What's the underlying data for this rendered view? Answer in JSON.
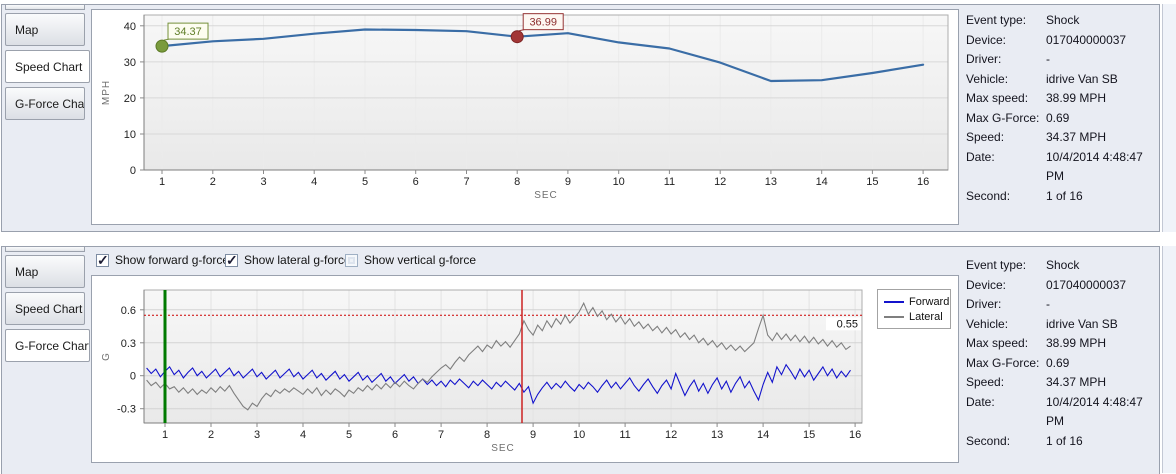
{
  "tabs": [
    "Map",
    "Speed Chart",
    "G-Force Chart"
  ],
  "top_panel": {
    "selected_tab": "Speed Chart"
  },
  "bottom_panel": {
    "selected_tab": "G-Force Chart"
  },
  "info": {
    "rows": [
      {
        "label": "Event type:",
        "value": "Shock"
      },
      {
        "label": "Device:",
        "value": "017040000037"
      },
      {
        "label": "Driver:",
        "value": "-"
      },
      {
        "label": "Vehicle:",
        "value": "idrive Van SB"
      },
      {
        "label": "Max speed:",
        "value": "38.99 MPH"
      },
      {
        "label": "Max G-Force:",
        "value": "0.69"
      },
      {
        "label": "Speed:",
        "value": "34.37 MPH"
      },
      {
        "label": "Date:",
        "value": "10/4/2014 4:48:47 PM"
      },
      {
        "label": "Second:",
        "value": "1 of 16"
      }
    ]
  },
  "gforce_controls": {
    "checkboxes": [
      {
        "label": "Show forward g-force",
        "checked": true
      },
      {
        "label": "Show lateral g-force",
        "checked": true
      },
      {
        "label": "Show vertical g-force",
        "checked": false
      }
    ]
  },
  "chart_data": [
    {
      "type": "line",
      "title": "Speed Chart",
      "xlabel": "SEC",
      "ylabel": "MPH",
      "x": [
        1,
        2,
        3,
        4,
        5,
        6,
        7,
        8,
        9,
        10,
        11,
        12,
        13,
        14,
        15,
        16
      ],
      "values": [
        34.37,
        35.7,
        36.4,
        37.8,
        38.99,
        38.85,
        38.5,
        36.99,
        37.95,
        35.4,
        33.7,
        29.8,
        24.7,
        24.9,
        26.9,
        29.2
      ],
      "ylim": [
        0,
        43
      ],
      "yticks": [
        0,
        10,
        20,
        30,
        40
      ],
      "xticks": [
        1,
        2,
        3,
        4,
        5,
        6,
        7,
        8,
        9,
        10,
        11,
        12,
        13,
        14,
        15,
        16
      ],
      "grid": true,
      "line_color": "#3a6da6",
      "annotations": [
        {
          "x": 1,
          "y": 34.37,
          "label": "34.37",
          "dot_color": "#7a9b3d",
          "dot_edge": "#5c7a26",
          "text_color": "#5e7d26",
          "box_border": "#74903a",
          "box_fill": "#fdfdf0"
        },
        {
          "x": 8,
          "y": 36.99,
          "label": "36.99",
          "dot_color": "#a23636",
          "dot_edge": "#7d2424",
          "text_color": "#8d2f2f",
          "box_border": "#963434",
          "box_fill": "#fdf7f2"
        }
      ]
    },
    {
      "type": "line",
      "title": "G-Force Chart",
      "xlabel": "SEC",
      "ylabel": "G",
      "ylim": [
        -0.43,
        0.78
      ],
      "yticks": [
        -0.3,
        0,
        0.3,
        0.6
      ],
      "xticks": [
        1,
        2,
        3,
        4,
        5,
        6,
        7,
        8,
        9,
        10,
        11,
        12,
        13,
        14,
        15,
        16
      ],
      "grid": true,
      "legend_position": "top-right",
      "threshold": {
        "y": 0.55,
        "label": "0.55",
        "color": "#cc0000"
      },
      "vmarkers": [
        {
          "name": "selected-second-marker",
          "x": 1,
          "color": "#007a00",
          "width": 3
        },
        {
          "name": "event-cursor",
          "x": 8.76,
          "color": "#cc2222",
          "width": 1.5
        }
      ],
      "legend": [
        {
          "name": "Forward",
          "color": "#1313cc"
        },
        {
          "name": "Lateral",
          "color": "#7f7f7f"
        }
      ],
      "x_start": 0.6,
      "x_step": 0.1,
      "series": [
        {
          "name": "Forward",
          "color": "#1313cc",
          "values": [
            0.07,
            0.02,
            0.06,
            -0.01,
            0.04,
            0.08,
            0.01,
            0.05,
            -0.02,
            0.03,
            0.07,
            0.0,
            0.04,
            -0.02,
            0.02,
            0.06,
            -0.01,
            0.03,
            0.07,
            0.0,
            0.04,
            -0.02,
            0.02,
            0.06,
            -0.01,
            0.03,
            -0.03,
            0.01,
            0.05,
            -0.02,
            0.02,
            0.06,
            -0.01,
            0.03,
            -0.03,
            0.01,
            0.05,
            -0.02,
            0.02,
            -0.04,
            0.0,
            0.04,
            -0.03,
            0.01,
            -0.05,
            -0.01,
            0.03,
            -0.04,
            0.0,
            -0.06,
            -0.02,
            0.02,
            -0.05,
            -0.01,
            -0.07,
            -0.03,
            0.01,
            -0.05,
            -0.01,
            -0.07,
            -0.03,
            -0.08,
            -0.04,
            -0.09,
            -0.05,
            -0.1,
            -0.04,
            -0.08,
            -0.03,
            -0.07,
            -0.11,
            -0.05,
            -0.09,
            -0.04,
            -0.08,
            -0.12,
            -0.06,
            -0.1,
            -0.05,
            -0.09,
            -0.13,
            -0.07,
            -0.15,
            -0.1,
            -0.25,
            -0.17,
            -0.11,
            -0.06,
            -0.12,
            -0.07,
            -0.11,
            -0.05,
            -0.1,
            -0.14,
            -0.08,
            -0.12,
            -0.06,
            -0.1,
            -0.15,
            -0.09,
            -0.04,
            -0.11,
            -0.06,
            -0.12,
            -0.07,
            -0.02,
            -0.09,
            -0.14,
            -0.08,
            -0.03,
            -0.1,
            -0.16,
            -0.09,
            -0.04,
            -0.12,
            0.02,
            -0.08,
            -0.18,
            -0.1,
            -0.04,
            -0.14,
            -0.07,
            -0.16,
            -0.08,
            -0.02,
            -0.12,
            -0.05,
            -0.15,
            -0.07,
            -0.01,
            -0.11,
            -0.05,
            -0.14,
            -0.22,
            -0.08,
            0.03,
            -0.06,
            0.08,
            0.01,
            0.1,
            0.04,
            -0.03,
            0.06,
            -0.01,
            0.05,
            -0.04,
            0.02,
            0.08,
            0.0,
            0.06,
            -0.02,
            0.04,
            -0.01,
            0.05
          ]
        },
        {
          "name": "Lateral",
          "color": "#7f7f7f",
          "values": [
            -0.04,
            -0.09,
            -0.06,
            -0.11,
            -0.07,
            -0.12,
            -0.1,
            -0.15,
            -0.11,
            -0.16,
            -0.12,
            -0.17,
            -0.13,
            -0.16,
            -0.11,
            -0.15,
            -0.1,
            -0.14,
            -0.09,
            -0.16,
            -0.22,
            -0.28,
            -0.31,
            -0.25,
            -0.28,
            -0.21,
            -0.16,
            -0.19,
            -0.13,
            -0.16,
            -0.12,
            -0.15,
            -0.11,
            -0.14,
            -0.17,
            -0.12,
            -0.16,
            -0.11,
            -0.18,
            -0.13,
            -0.17,
            -0.12,
            -0.15,
            -0.19,
            -0.13,
            -0.16,
            -0.11,
            -0.14,
            -0.09,
            -0.13,
            -0.08,
            -0.12,
            -0.07,
            -0.11,
            -0.06,
            -0.1,
            -0.05,
            -0.09,
            -0.12,
            -0.07,
            -0.03,
            -0.06,
            -0.01,
            0.03,
            0.07,
            0.1,
            0.06,
            0.12,
            0.17,
            0.13,
            0.19,
            0.23,
            0.27,
            0.22,
            0.28,
            0.25,
            0.32,
            0.27,
            0.31,
            0.26,
            0.32,
            0.38,
            0.5,
            0.42,
            0.37,
            0.46,
            0.41,
            0.5,
            0.44,
            0.52,
            0.47,
            0.55,
            0.48,
            0.53,
            0.58,
            0.66,
            0.56,
            0.62,
            0.54,
            0.59,
            0.51,
            0.56,
            0.49,
            0.54,
            0.47,
            0.52,
            0.45,
            0.49,
            0.43,
            0.47,
            0.41,
            0.45,
            0.39,
            0.44,
            0.38,
            0.42,
            0.35,
            0.39,
            0.33,
            0.37,
            0.3,
            0.34,
            0.28,
            0.32,
            0.26,
            0.3,
            0.24,
            0.28,
            0.23,
            0.27,
            0.22,
            0.26,
            0.3,
            0.43,
            0.55,
            0.37,
            0.32,
            0.39,
            0.33,
            0.38,
            0.32,
            0.37,
            0.31,
            0.36,
            0.3,
            0.35,
            0.29,
            0.33,
            0.27,
            0.32,
            0.26,
            0.3,
            0.24,
            0.27
          ]
        }
      ]
    }
  ],
  "colors": {
    "speed_line": "#3a6da6",
    "forward_line": "#1313cc",
    "lateral_line": "#7f7f7f",
    "threshold_red": "#cc0000",
    "cursor_red": "#cc2222",
    "selected_green": "#007a00",
    "panel_bg": "#e9ecf3"
  }
}
